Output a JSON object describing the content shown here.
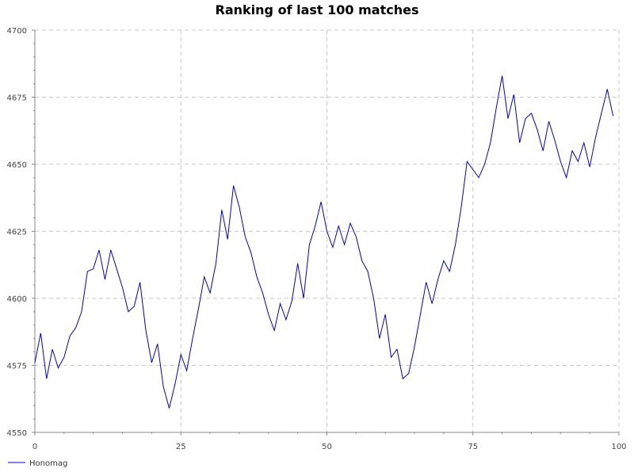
{
  "chart_data": {
    "type": "line",
    "title": "Ranking of last 100 matches",
    "xlabel": "",
    "ylabel": "",
    "xlim": [
      0,
      100
    ],
    "ylim": [
      4550,
      4700
    ],
    "x_ticks": [
      0,
      25,
      50,
      75,
      100
    ],
    "y_ticks": [
      4550,
      4575,
      4600,
      4625,
      4650,
      4675,
      4700
    ],
    "grid": true,
    "legend_position": "bottom-left",
    "series": [
      {
        "name": "Honomag",
        "color": "#0000cc",
        "values": [
          4576,
          4587,
          4570,
          4581,
          4574,
          4578,
          4586,
          4589,
          4595,
          4610,
          4611,
          4618,
          4607,
          4618,
          4611,
          4604,
          4595,
          4597,
          4606,
          4588,
          4576,
          4583,
          4567,
          4559,
          4568,
          4579,
          4573,
          4585,
          4596,
          4608,
          4602,
          4613,
          4633,
          4622,
          4642,
          4634,
          4623,
          4617,
          4608,
          4602,
          4594,
          4588,
          4598,
          4592,
          4599,
          4613,
          4600,
          4620,
          4627,
          4636,
          4625,
          4619,
          4627,
          4620,
          4628,
          4623,
          4614,
          4610,
          4600,
          4585,
          4594,
          4578,
          4581,
          4570,
          4572,
          4582,
          4594,
          4606,
          4598,
          4607,
          4614,
          4610,
          4620,
          4634,
          4651,
          4648,
          4645,
          4650,
          4658,
          4671,
          4683,
          4667,
          4676,
          4658,
          4667,
          4669,
          4663,
          4655,
          4666,
          4659,
          4651,
          4645,
          4655,
          4651,
          4658,
          4649,
          4660,
          4669,
          4678,
          4668
        ]
      }
    ]
  }
}
